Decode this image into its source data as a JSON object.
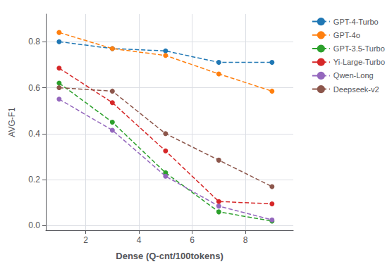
{
  "chart_data": {
    "type": "line",
    "x": [
      1,
      3,
      5,
      7,
      9
    ],
    "series": [
      {
        "name": "GPT-4-Turbo",
        "color": "#1f77b4",
        "values": [
          0.8,
          0.77,
          0.76,
          0.71,
          0.71
        ]
      },
      {
        "name": "GPT-4o",
        "color": "#ff7f0e",
        "values": [
          0.84,
          0.77,
          0.74,
          0.66,
          0.585
        ]
      },
      {
        "name": "GPT-3.5-Turbo",
        "color": "#2ca02c",
        "values": [
          0.62,
          0.45,
          0.23,
          0.06,
          0.02
        ]
      },
      {
        "name": "Yi-Large-Turbo",
        "color": "#d62728",
        "values": [
          0.685,
          0.535,
          0.325,
          0.105,
          0.095
        ]
      },
      {
        "name": "Qwen-Long",
        "color": "#9467bd",
        "values": [
          0.55,
          0.415,
          0.215,
          0.085,
          0.025
        ]
      },
      {
        "name": "Deepseek-v2",
        "color": "#8c564b",
        "values": [
          0.6,
          0.585,
          0.4,
          0.285,
          0.17
        ]
      }
    ],
    "xlabel": "Dense (Q-cnt/100tokens)",
    "ylabel": "AVG-F1",
    "xlim": [
      0.5,
      9.8
    ],
    "ylim": [
      -0.02,
      0.92
    ],
    "xticks": [
      2,
      4,
      6,
      8
    ],
    "yticks": [
      {
        "value": 0.0,
        "label": "0.0"
      },
      0.2,
      0.4,
      0.6,
      0.8
    ],
    "grid": true,
    "legend": "right",
    "marker": "circle",
    "line_style": "dashed"
  }
}
